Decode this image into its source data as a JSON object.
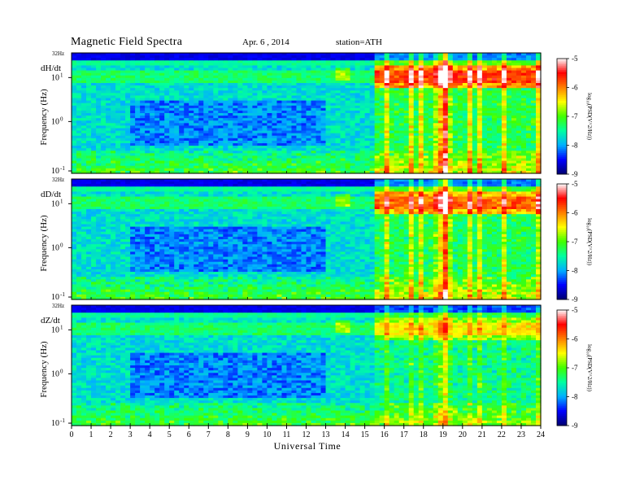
{
  "header": {
    "title": "Magnetic  Field  Spectra",
    "date": "Apr. 6  , 2014",
    "station": "station=ATH"
  },
  "chart_data": {
    "type": "heatmap",
    "xlabel": "Universal Time",
    "x_ticks": [
      0,
      1,
      2,
      3,
      4,
      5,
      6,
      7,
      8,
      9,
      10,
      11,
      12,
      13,
      14,
      15,
      16,
      17,
      18,
      19,
      20,
      21,
      22,
      23,
      24
    ],
    "xlim": [
      0,
      24
    ],
    "ylabel": "Frequency (Hz)",
    "y_scale": "log",
    "y_ticks": [
      {
        "base": "10",
        "exp": "1"
      },
      {
        "base": "10",
        "exp": "0"
      },
      {
        "base": "10",
        "exp": "-1"
      }
    ],
    "y_top_label": "32Hz",
    "colorbar": {
      "label": "log₁₀(PSD(V^2/Hz))",
      "ticks": [
        "-5",
        "-6",
        "-7",
        "-8",
        "-9"
      ],
      "range": [
        -9,
        -5
      ],
      "colors": [
        "#000070",
        "#0000ff",
        "#00b0ff",
        "#00ffa0",
        "#40ff00",
        "#ffff00",
        "#ff8000",
        "#ff0000",
        "#ffffff"
      ]
    },
    "panels": [
      {
        "name": "dH/dt",
        "event_start_hr": 15.4,
        "peak_hr": 19.0,
        "intensity": 1.0
      },
      {
        "name": "dD/dt",
        "event_start_hr": 15.4,
        "peak_hr": 19.0,
        "intensity": 0.9
      },
      {
        "name": "dZ/dt",
        "event_start_hr": 15.4,
        "peak_hr": 19.0,
        "intensity": 0.55
      }
    ]
  }
}
